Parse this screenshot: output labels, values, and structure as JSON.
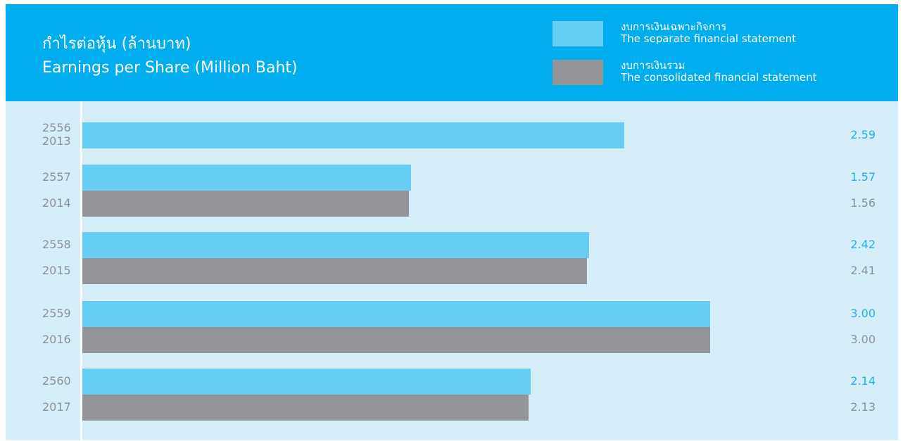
{
  "colors": {
    "header_bg": "#00adee",
    "plot_bg": "#d6eefa",
    "separate": "#66cdf4",
    "consolidated": "#939598",
    "separate_label": "#1fb2ea",
    "consolidated_label": "#8e9194"
  },
  "chart_data": {
    "type": "bar",
    "orientation": "horizontal",
    "title": "กำไรต่อหุ้น (ล้านบาท)",
    "subtitle": "Earnings per Share (Million Baht)",
    "legend_position": "top-right",
    "grid": false,
    "xlim": [
      0,
      3.55
    ],
    "categories": [
      {
        "thai_year": "2556",
        "year": "2013"
      },
      {
        "thai_year": "2557",
        "year": "2014"
      },
      {
        "thai_year": "2558",
        "year": "2015"
      },
      {
        "thai_year": "2559",
        "year": "2016"
      },
      {
        "thai_year": "2560",
        "year": "2017"
      }
    ],
    "series": [
      {
        "name": "งบการเงินเฉพาะกิจการ",
        "name_en": "The separate financial statement",
        "values": [
          2.59,
          1.57,
          2.42,
          3.0,
          2.14
        ],
        "labels": [
          "2.59",
          "1.57",
          "2.42",
          "3.00",
          "2.14"
        ]
      },
      {
        "name": "งบการเงินรวม",
        "name_en": "The consolidated financial statement",
        "values": [
          null,
          1.56,
          2.41,
          3.0,
          2.13
        ],
        "labels": [
          "",
          "1.56",
          "2.41",
          "3.00",
          "2.13"
        ]
      }
    ]
  }
}
